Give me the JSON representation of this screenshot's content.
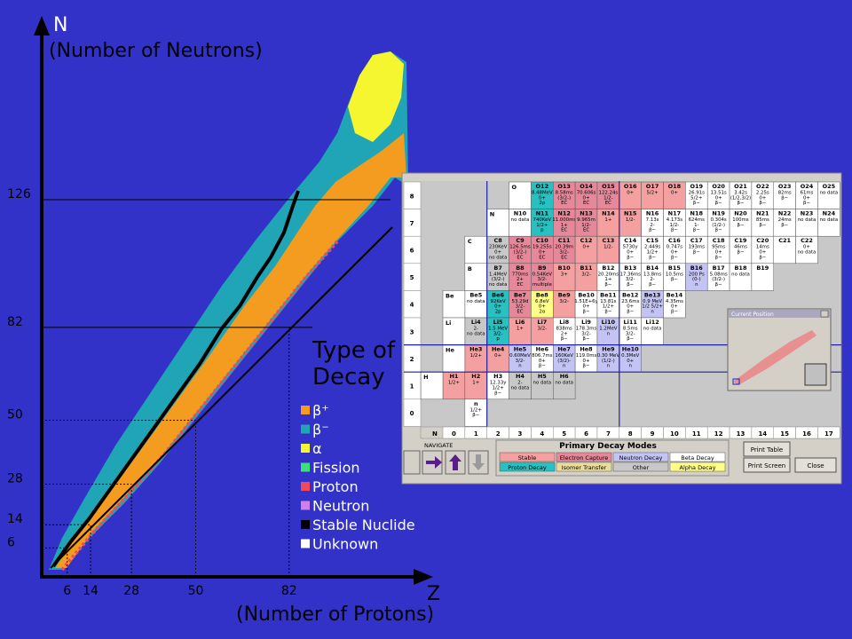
{
  "axes": {
    "y_label": "N",
    "y_title": "(Number of Neutrons)",
    "x_label": "Z",
    "x_title": "(Number of Protons)",
    "yticks": [
      6,
      14,
      28,
      50,
      82,
      126
    ],
    "xticks": [
      6,
      14,
      28,
      50,
      82
    ]
  },
  "legend": {
    "title_lines": [
      "Type of",
      "Decay"
    ],
    "items": [
      {
        "label": "β⁺",
        "color": "#f39c1f"
      },
      {
        "label": "β⁻",
        "color": "#1fa5b5"
      },
      {
        "label": "α",
        "color": "#f5f530"
      },
      {
        "label": "Fission",
        "color": "#3ae07a"
      },
      {
        "label": "Proton",
        "color": "#f04a5a"
      },
      {
        "label": "Neutron",
        "color": "#d080e8"
      },
      {
        "label": "Stable Nuclide",
        "color": "#000000"
      },
      {
        "label": "Unknown",
        "color": "#ffffff"
      }
    ]
  },
  "table": {
    "column_header": "N",
    "columns": [
      "0",
      "1",
      "2",
      "3",
      "4",
      "5",
      "6",
      "7",
      "8",
      "9",
      "10",
      "11",
      "12",
      "13",
      "14",
      "15",
      "16",
      "17"
    ],
    "rows": [
      {
        "z": "8",
        "element": "O",
        "cells": [
          {
            "name": "O12",
            "color": "#28c0c0",
            "lines": [
              "8.48MeV",
              "0+",
              "2p"
            ]
          },
          {
            "name": "O13",
            "color": "#e4889a",
            "lines": [
              "8.58ms",
              "(3/2-)",
              "EC"
            ]
          },
          {
            "name": "O14",
            "color": "#e4889a",
            "lines": [
              "70.606s",
              "0+",
              "EC"
            ]
          },
          {
            "name": "O15",
            "color": "#e4889a",
            "lines": [
              "122.24s",
              "1/2-",
              "EC"
            ]
          },
          {
            "name": "O16",
            "color": "#f4a0a0",
            "lines": [
              "0+"
            ]
          },
          {
            "name": "O17",
            "color": "#f4a0a0",
            "lines": [
              "5/2+"
            ]
          },
          {
            "name": "O18",
            "color": "#f4a0a0",
            "lines": [
              "0+"
            ]
          },
          {
            "name": "O19",
            "color": "#ffffff",
            "lines": [
              "26.91s",
              "5/2+",
              "β−"
            ]
          },
          {
            "name": "O20",
            "color": "#ffffff",
            "lines": [
              "13.51s",
              "0+",
              "β−"
            ]
          },
          {
            "name": "O21",
            "color": "#ffffff",
            "lines": [
              "3.42s",
              "(1/2,3/2)",
              "β−"
            ]
          },
          {
            "name": "O22",
            "color": "#ffffff",
            "lines": [
              "2.25s",
              "0+",
              "β−"
            ]
          },
          {
            "name": "O23",
            "color": "#ffffff",
            "lines": [
              "82ms",
              "β−"
            ]
          },
          {
            "name": "O24",
            "color": "#ffffff",
            "lines": [
              "61ms",
              "0+",
              "β−"
            ]
          },
          {
            "name": "O25",
            "color": "#ffffff",
            "lines": [
              "no data"
            ]
          }
        ]
      },
      {
        "z": "7",
        "element": "N",
        "cells": [
          {
            "name": "N10",
            "color": "#ffffff",
            "lines": [
              "no data"
            ]
          },
          {
            "name": "N11",
            "color": "#28c0c0",
            "lines": [
              "740KeV",
              "1/2+",
              "p"
            ]
          },
          {
            "name": "N12",
            "color": "#e4889a",
            "lines": [
              "11.000ms",
              "1+",
              "EC"
            ]
          },
          {
            "name": "N13",
            "color": "#e4889a",
            "lines": [
              "9.965m",
              "1/2-",
              "EC"
            ]
          },
          {
            "name": "N14",
            "color": "#f4a0a0",
            "lines": [
              "1+"
            ]
          },
          {
            "name": "N15",
            "color": "#f4a0a0",
            "lines": [
              "1/2-"
            ]
          },
          {
            "name": "N16",
            "color": "#ffffff",
            "lines": [
              "7.13s",
              "2-",
              "β−"
            ]
          },
          {
            "name": "N17",
            "color": "#ffffff",
            "lines": [
              "4.173s",
              "1/2-",
              "β−"
            ]
          },
          {
            "name": "N18",
            "color": "#ffffff",
            "lines": [
              "624ms",
              "1-",
              "β−"
            ]
          },
          {
            "name": "N19",
            "color": "#ffffff",
            "lines": [
              "0.304s",
              "(1/2-)",
              "β−"
            ]
          },
          {
            "name": "N20",
            "color": "#ffffff",
            "lines": [
              "100ms",
              "β−"
            ]
          },
          {
            "name": "N21",
            "color": "#ffffff",
            "lines": [
              "85ms",
              "β−"
            ]
          },
          {
            "name": "N22",
            "color": "#ffffff",
            "lines": [
              "24ms",
              "β−"
            ]
          },
          {
            "name": "N23",
            "color": "#ffffff",
            "lines": [
              "no data"
            ]
          },
          {
            "name": "N24",
            "color": "#ffffff",
            "lines": [
              "no data"
            ]
          }
        ]
      },
      {
        "z": "6",
        "element": "C",
        "cells": [
          {
            "name": "C8",
            "color": "#c8c8c8",
            "lines": [
              "230KeV",
              "0+",
              "no data"
            ]
          },
          {
            "name": "C9",
            "color": "#e4889a",
            "lines": [
              "126.5ms",
              "(3/2-)",
              "EC"
            ]
          },
          {
            "name": "C10",
            "color": "#e4889a",
            "lines": [
              "19.255s",
              "0+",
              "EC"
            ]
          },
          {
            "name": "C11",
            "color": "#e4889a",
            "lines": [
              "20.39m",
              "3/2-",
              "EC"
            ]
          },
          {
            "name": "C12",
            "color": "#f4a0a0",
            "lines": [
              "0+"
            ]
          },
          {
            "name": "C13",
            "color": "#f4a0a0",
            "lines": [
              "1/2-"
            ]
          },
          {
            "name": "C14",
            "color": "#ffffff",
            "lines": [
              "5730y",
              "0+",
              "β−"
            ]
          },
          {
            "name": "C15",
            "color": "#ffffff",
            "lines": [
              "2.449s",
              "1/2+",
              "β−"
            ]
          },
          {
            "name": "C16",
            "color": "#ffffff",
            "lines": [
              "0.747s",
              "0+",
              "β−"
            ]
          },
          {
            "name": "C17",
            "color": "#ffffff",
            "lines": [
              "193ms",
              "β−"
            ]
          },
          {
            "name": "C18",
            "color": "#ffffff",
            "lines": [
              "95ms",
              "0+",
              "β−"
            ]
          },
          {
            "name": "C19",
            "color": "#ffffff",
            "lines": [
              "46ms",
              "β−"
            ]
          },
          {
            "name": "C20",
            "color": "#ffffff",
            "lines": [
              "14ms",
              "0+",
              "β−"
            ]
          },
          {
            "name": "C21",
            "color": "#ffffff",
            "lines": []
          },
          {
            "name": "C22",
            "color": "#ffffff",
            "lines": [
              "0+",
              "no data"
            ]
          }
        ]
      },
      {
        "z": "5",
        "element": "B",
        "cells": [
          {
            "name": "B7",
            "color": "#c8c8c8",
            "lines": [
              "1.4MeV",
              "(3/2-)",
              "no data"
            ]
          },
          {
            "name": "B8",
            "color": "#e4889a",
            "lines": [
              "770ms",
              "2+",
              "EC"
            ]
          },
          {
            "name": "B9",
            "color": "#e4889a",
            "lines": [
              "0.54KeV",
              "3/2-",
              "multiple"
            ]
          },
          {
            "name": "B10",
            "color": "#f4a0a0",
            "lines": [
              "3+"
            ]
          },
          {
            "name": "B11",
            "color": "#f4a0a0",
            "lines": [
              "3/2-"
            ]
          },
          {
            "name": "B12",
            "color": "#ffffff",
            "lines": [
              "20.20ms",
              "1+",
              "β−"
            ]
          },
          {
            "name": "B13",
            "color": "#ffffff",
            "lines": [
              "17.36ms",
              "3/2-",
              "β−"
            ]
          },
          {
            "name": "B14",
            "color": "#ffffff",
            "lines": [
              "13.8ms",
              "2-",
              "β−"
            ]
          },
          {
            "name": "B15",
            "color": "#ffffff",
            "lines": [
              "10.5ms",
              "β−"
            ]
          },
          {
            "name": "B16",
            "color": "#c4c4f4",
            "lines": [
              "200 Ps",
              "(0-)",
              "n"
            ]
          },
          {
            "name": "B17",
            "color": "#ffffff",
            "lines": [
              "5.08ms",
              "(3/2-)",
              "β−"
            ]
          },
          {
            "name": "B18",
            "color": "#ffffff",
            "lines": [
              "no data"
            ]
          },
          {
            "name": "B19",
            "color": "#ffffff",
            "lines": []
          }
        ]
      },
      {
        "z": "4",
        "element": "Be",
        "cells": [
          {
            "name": "Be5",
            "color": "#ffffff",
            "lines": [
              "no data"
            ]
          },
          {
            "name": "Be6",
            "color": "#28c0c0",
            "lines": [
              "92KeV",
              "0+",
              "2p"
            ]
          },
          {
            "name": "Be7",
            "color": "#e4889a",
            "lines": [
              "53.29d",
              "3/2-",
              "EC"
            ]
          },
          {
            "name": "Be8",
            "color": "#ffff88",
            "lines": [
              "6.8eV",
              "0+",
              "2α"
            ]
          },
          {
            "name": "Be9",
            "color": "#f4a0a0",
            "lines": [
              "3/2-"
            ]
          },
          {
            "name": "Be10",
            "color": "#ffffff",
            "lines": [
              "1.51E+6y",
              "0+",
              "β−"
            ]
          },
          {
            "name": "Be11",
            "color": "#ffffff",
            "lines": [
              "13.81s",
              "1/2+",
              "β−"
            ]
          },
          {
            "name": "Be12",
            "color": "#ffffff",
            "lines": [
              "23.6ms",
              "0+",
              "β−"
            ]
          },
          {
            "name": "Be13",
            "color": "#c4c4f4",
            "lines": [
              "0.9 MeV",
              "1/2 5/2+",
              "n"
            ]
          },
          {
            "name": "Be14",
            "color": "#ffffff",
            "lines": [
              "4.35ms",
              "0+",
              "β−"
            ]
          }
        ]
      },
      {
        "z": "3",
        "element": "Li",
        "cells": [
          {
            "name": "Li4",
            "color": "#c8c8c8",
            "lines": [
              "2-",
              "no data"
            ]
          },
          {
            "name": "Li5",
            "color": "#28c0c0",
            "lines": [
              "1.5 MeV",
              "3/2-",
              "p"
            ]
          },
          {
            "name": "Li6",
            "color": "#f4a0a0",
            "lines": [
              "1+"
            ]
          },
          {
            "name": "Li7",
            "color": "#f4a0a0",
            "lines": [
              "3/2-"
            ]
          },
          {
            "name": "Li8",
            "color": "#ffffff",
            "lines": [
              "838ms",
              "2+",
              "β−"
            ]
          },
          {
            "name": "Li9",
            "color": "#ffffff",
            "lines": [
              "178.3ms",
              "3/2-",
              "β−"
            ]
          },
          {
            "name": "Li10",
            "color": "#c4c4f4",
            "lines": [
              "1.2MeV",
              "n"
            ]
          },
          {
            "name": "Li11",
            "color": "#ffffff",
            "lines": [
              "8.5ms",
              "3/2-",
              "β−"
            ]
          },
          {
            "name": "Li12",
            "color": "#ffffff",
            "lines": [
              "no data"
            ]
          }
        ]
      },
      {
        "z": "2",
        "element": "He",
        "cells": [
          {
            "name": "He3",
            "color": "#f4a0a0",
            "lines": [
              "1/2+"
            ]
          },
          {
            "name": "He4",
            "color": "#f4a0a0",
            "lines": [
              "0+"
            ]
          },
          {
            "name": "He5",
            "color": "#c4c4f4",
            "lines": [
              "0.60MeV",
              "3/2-",
              "n"
            ]
          },
          {
            "name": "He6",
            "color": "#ffffff",
            "lines": [
              "806.7ms",
              "0+",
              "β−"
            ]
          },
          {
            "name": "He7",
            "color": "#c4c4f4",
            "lines": [
              "160KeV",
              "(3/2)-",
              "n"
            ]
          },
          {
            "name": "He8",
            "color": "#ffffff",
            "lines": [
              "119.0ms",
              "0+",
              "β−"
            ]
          },
          {
            "name": "He9",
            "color": "#c4c4f4",
            "lines": [
              "0.30 MeV",
              "(1/2-)",
              "n"
            ]
          },
          {
            "name": "He10",
            "color": "#c4c4f4",
            "lines": [
              "0.3MeV",
              "0+",
              "n"
            ]
          }
        ]
      },
      {
        "z": "1",
        "element": "H",
        "cells": [
          {
            "name": "H1",
            "color": "#f4a0a0",
            "lines": [
              "1/2+"
            ]
          },
          {
            "name": "H2",
            "color": "#f4a0a0",
            "lines": [
              "1+"
            ]
          },
          {
            "name": "H3",
            "color": "#ffffff",
            "lines": [
              "12.33y",
              "1/2+",
              "β−"
            ]
          },
          {
            "name": "H4",
            "color": "#c8c8c8",
            "lines": [
              "2-",
              "no data"
            ]
          },
          {
            "name": "H5",
            "color": "#c8c8c8",
            "lines": [
              "no data"
            ]
          },
          {
            "name": "H6",
            "color": "#c8c8c8",
            "lines": [
              "no data"
            ]
          }
        ]
      },
      {
        "z": "0",
        "cells": [
          {
            "name": "n",
            "color": "#ffffff",
            "lines": [
              "1/2+",
              "β−"
            ]
          }
        ]
      }
    ],
    "navigate": "NAVIGATE",
    "modes_title": "Primary Decay Modes",
    "modes": [
      {
        "label": "Stable",
        "color": "#f4a0a0"
      },
      {
        "label": "Electron Capture",
        "color": "#e4889a"
      },
      {
        "label": "Neutron Decay",
        "color": "#c4c4f4"
      },
      {
        "label": "Beta Decay",
        "color": "#ffffff"
      },
      {
        "label": "Proton Decay",
        "color": "#28c0c0"
      },
      {
        "label": "Isomer Transfer",
        "color": "#e8dca0"
      },
      {
        "label": "Other",
        "color": "#c8c8c8"
      },
      {
        "label": "Alpha Decay",
        "color": "#ffff88"
      }
    ],
    "buttons": [
      "Print Table",
      "Print Screen",
      "Close"
    ],
    "window_title": "Current Position"
  }
}
